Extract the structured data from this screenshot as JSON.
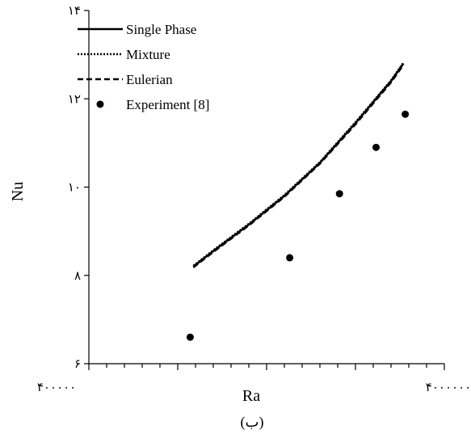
{
  "chart_data": {
    "type": "line",
    "title": "",
    "xlabel": "Ra",
    "ylabel": "Nu",
    "caption": "(ب)",
    "xlim": [
      0,
      100
    ],
    "ylim": [
      6,
      14
    ],
    "x_tick_labels": [
      "۴۰۰۰۰۰",
      "۴۰۰۰۰۰۰"
    ],
    "y_ticks": [
      {
        "value": 6,
        "label": "۶"
      },
      {
        "value": 8,
        "label": "۸"
      },
      {
        "value": 10,
        "label": "۱۰"
      },
      {
        "value": 12,
        "label": "۱۲"
      },
      {
        "value": 14,
        "label": "۱۴"
      }
    ],
    "grid": false,
    "legend_position": "top-left",
    "series": [
      {
        "name": "Single Phase",
        "style": "solid",
        "color": "#000000",
        "points": [
          [
            29.4,
            8.2
          ],
          [
            35,
            8.55
          ],
          [
            45,
            9.15
          ],
          [
            55,
            9.8
          ],
          [
            65,
            10.55
          ],
          [
            75,
            11.45
          ],
          [
            85,
            12.4
          ],
          [
            88.5,
            12.8
          ]
        ]
      },
      {
        "name": "Mixture",
        "style": "dotted",
        "color": "#000000",
        "points": [
          [
            29.4,
            8.22
          ],
          [
            35,
            8.57
          ],
          [
            45,
            9.17
          ],
          [
            55,
            9.82
          ],
          [
            65,
            10.57
          ],
          [
            75,
            11.47
          ],
          [
            85,
            12.42
          ],
          [
            88.5,
            12.82
          ]
        ]
      },
      {
        "name": "Eulerian",
        "style": "dashed",
        "color": "#000000",
        "points": [
          [
            29.4,
            8.18
          ],
          [
            35,
            8.53
          ],
          [
            45,
            9.13
          ],
          [
            55,
            9.78
          ],
          [
            65,
            10.53
          ],
          [
            75,
            11.42
          ],
          [
            85,
            12.37
          ],
          [
            88.5,
            12.77
          ]
        ]
      },
      {
        "name": "Experiment [8]",
        "style": "marker",
        "color": "#000000",
        "points": [
          [
            28.5,
            6.6
          ],
          [
            56.5,
            8.4
          ],
          [
            70.5,
            9.85
          ],
          [
            80.8,
            10.9
          ],
          [
            89,
            11.65
          ]
        ]
      }
    ]
  }
}
